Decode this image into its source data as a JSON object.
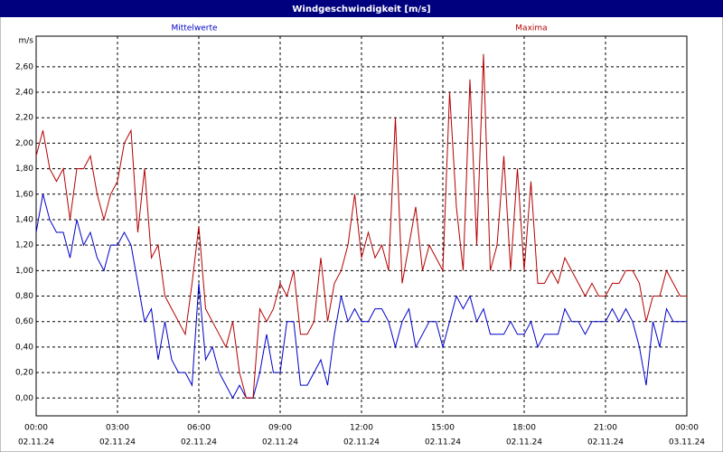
{
  "chart_data": {
    "type": "line",
    "title": "Windgeschwindigkeit [m/s]",
    "y_unit": "m/s",
    "x": [
      0,
      0.25,
      0.5,
      0.75,
      1,
      1.25,
      1.5,
      1.75,
      2,
      2.25,
      2.5,
      2.75,
      3,
      3.25,
      3.5,
      3.75,
      4,
      4.25,
      4.5,
      4.75,
      5,
      5.25,
      5.5,
      5.75,
      6,
      6.25,
      6.5,
      6.75,
      7,
      7.25,
      7.5,
      7.75,
      8,
      8.25,
      8.5,
      8.75,
      9,
      9.25,
      9.5,
      9.75,
      10,
      10.25,
      10.5,
      10.75,
      11,
      11.25,
      11.5,
      11.75,
      12,
      12.25,
      12.5,
      12.75,
      13,
      13.25,
      13.5,
      13.75,
      14,
      14.25,
      14.5,
      14.75,
      15,
      15.25,
      15.5,
      15.75,
      16,
      16.25,
      16.5,
      16.75,
      17,
      17.25,
      17.5,
      17.75,
      18,
      18.25,
      18.5,
      18.75,
      19,
      19.25,
      19.5,
      19.75,
      20,
      20.25,
      20.5,
      20.75,
      21,
      21.25,
      21.5,
      21.75,
      22,
      22.25,
      22.5,
      22.75,
      23,
      23.25,
      23.5,
      23.75,
      24
    ],
    "series": [
      {
        "name": "Mittelwerte",
        "color": "#0000c8",
        "values": [
          1.3,
          1.6,
          1.4,
          1.3,
          1.3,
          1.1,
          1.4,
          1.2,
          1.3,
          1.1,
          1.0,
          1.2,
          1.2,
          1.3,
          1.2,
          0.9,
          0.6,
          0.7,
          0.3,
          0.6,
          0.3,
          0.2,
          0.2,
          0.1,
          0.9,
          0.3,
          0.4,
          0.2,
          0.1,
          0.0,
          0.1,
          0.0,
          0.0,
          0.2,
          0.5,
          0.2,
          0.2,
          0.6,
          0.6,
          0.1,
          0.1,
          0.2,
          0.3,
          0.1,
          0.5,
          0.8,
          0.6,
          0.7,
          0.6,
          0.6,
          0.7,
          0.7,
          0.6,
          0.4,
          0.6,
          0.7,
          0.4,
          0.5,
          0.6,
          0.6,
          0.4,
          0.6,
          0.8,
          0.7,
          0.8,
          0.6,
          0.7,
          0.5,
          0.5,
          0.5,
          0.6,
          0.5,
          0.5,
          0.6,
          0.4,
          0.5,
          0.5,
          0.5,
          0.7,
          0.6,
          0.6,
          0.5,
          0.6,
          0.6,
          0.6,
          0.7,
          0.6,
          0.7,
          0.6,
          0.4,
          0.1,
          0.6,
          0.4,
          0.7,
          0.6,
          0.6,
          0.6
        ]
      },
      {
        "name": "Maxima",
        "color": "#b40000",
        "values": [
          1.9,
          2.1,
          1.8,
          1.7,
          1.8,
          1.4,
          1.8,
          1.8,
          1.9,
          1.6,
          1.4,
          1.6,
          1.7,
          2.0,
          2.1,
          1.3,
          1.8,
          1.1,
          1.2,
          0.8,
          0.7,
          0.6,
          0.5,
          0.9,
          1.35,
          0.7,
          0.6,
          0.5,
          0.4,
          0.6,
          0.2,
          0.0,
          0.0,
          0.7,
          0.6,
          0.7,
          0.9,
          0.8,
          1.0,
          0.5,
          0.5,
          0.6,
          1.1,
          0.6,
          0.9,
          1.0,
          1.2,
          1.6,
          1.1,
          1.3,
          1.1,
          1.2,
          1.0,
          2.2,
          0.9,
          1.2,
          1.5,
          1.0,
          1.2,
          1.1,
          1.0,
          2.4,
          1.5,
          1.0,
          2.5,
          1.2,
          2.7,
          1.0,
          1.2,
          1.9,
          1.0,
          1.8,
          1.0,
          1.7,
          0.9,
          0.9,
          1.0,
          0.9,
          1.1,
          1.0,
          0.9,
          0.8,
          0.9,
          0.8,
          0.8,
          0.9,
          0.9,
          1.0,
          1.0,
          0.9,
          0.6,
          0.8,
          0.8,
          1.0,
          0.9,
          0.8,
          0.8
        ]
      }
    ],
    "xlim": [
      0,
      24
    ],
    "xticks": [
      {
        "value": 0,
        "label": "00:00"
      },
      {
        "value": 3,
        "label": "03:00"
      },
      {
        "value": 6,
        "label": "06:00"
      },
      {
        "value": 9,
        "label": "09:00"
      },
      {
        "value": 12,
        "label": "12:00"
      },
      {
        "value": 15,
        "label": "15:00"
      },
      {
        "value": 18,
        "label": "18:00"
      },
      {
        "value": 21,
        "label": "21:00"
      },
      {
        "value": 24,
        "label": "00:00"
      }
    ],
    "xtick_dates": [
      "02.11.24",
      "02.11.24",
      "02.11.24",
      "02.11.24",
      "02.11.24",
      "02.11.24",
      "02.11.24",
      "02.11.24",
      "03.11.24"
    ],
    "ylim": [
      -0.14,
      2.84
    ],
    "yticks": [
      {
        "value": 0,
        "label": "0,00"
      },
      {
        "value": 0.2,
        "label": "0,20"
      },
      {
        "value": 0.4,
        "label": "0,40"
      },
      {
        "value": 0.6,
        "label": "0,60"
      },
      {
        "value": 0.8,
        "label": "0,80"
      },
      {
        "value": 1.0,
        "label": "1,00"
      },
      {
        "value": 1.2,
        "label": "1,20"
      },
      {
        "value": 1.4,
        "label": "1,40"
      },
      {
        "value": 1.6,
        "label": "1,60"
      },
      {
        "value": 1.8,
        "label": "1,80"
      },
      {
        "value": 2.0,
        "label": "2,00"
      },
      {
        "value": 2.2,
        "label": "2,20"
      },
      {
        "value": 2.4,
        "label": "2,40"
      },
      {
        "value": 2.6,
        "label": "2,60"
      }
    ],
    "grid": true
  }
}
